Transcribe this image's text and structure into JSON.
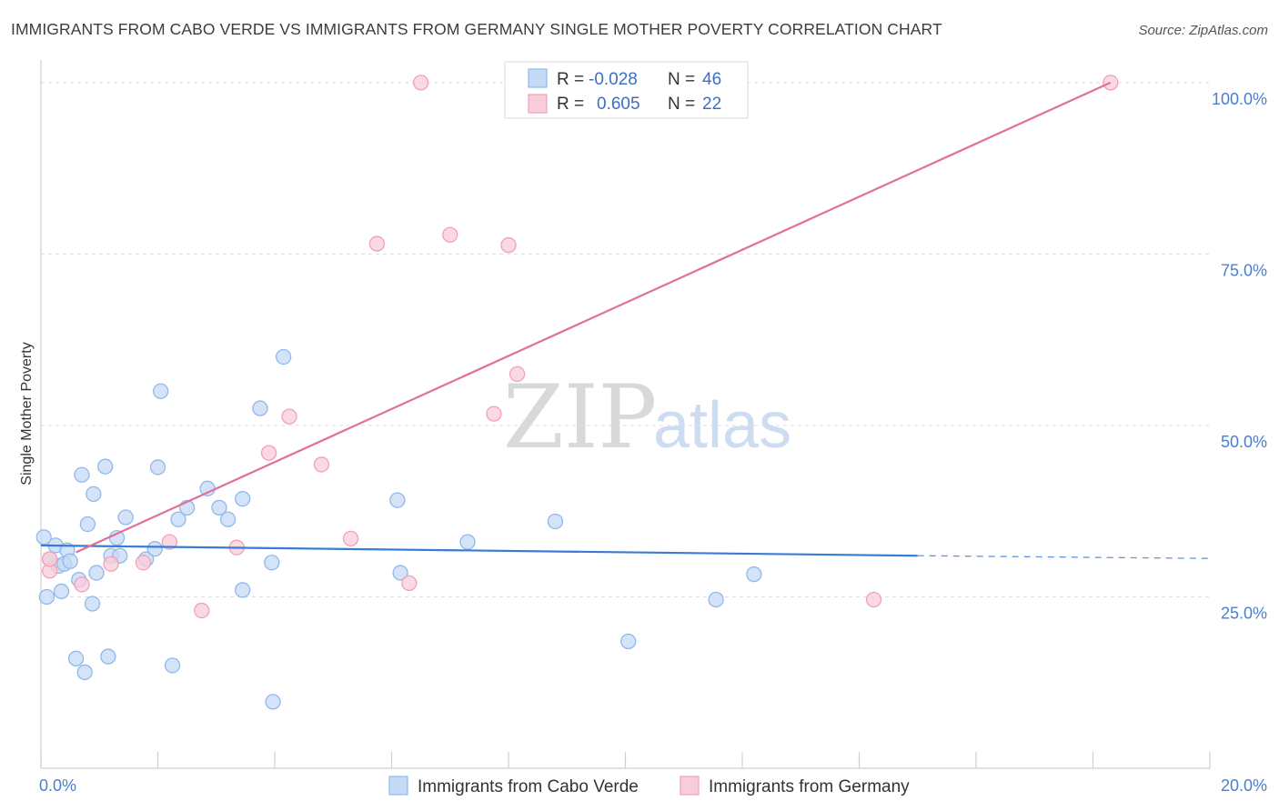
{
  "title": "IMMIGRANTS FROM CABO VERDE VS IMMIGRANTS FROM GERMANY SINGLE MOTHER POVERTY CORRELATION CHART",
  "source": "Source: ZipAtlas.com",
  "watermark": {
    "zip": "ZIP",
    "atlas": "atlas"
  },
  "legend": {
    "rows": [
      {
        "r_label": "R = ",
        "r_value": "-0.028",
        "n_label": "N = ",
        "n_value": "46",
        "color": "#8fb8ee",
        "fill": "#c5daf6"
      },
      {
        "r_label": "R = ",
        "r_value": "0.605",
        "n_label": "N = ",
        "n_value": "22",
        "color": "#f0a0b8",
        "fill": "#f9ccd9"
      }
    ]
  },
  "chart_data": {
    "type": "scatter",
    "title": "IMMIGRANTS FROM CABO VERDE VS IMMIGRANTS FROM GERMANY SINGLE MOTHER POVERTY CORRELATION CHART",
    "xlabel": "",
    "ylabel": "Single Mother Poverty",
    "xlim": [
      0,
      20
    ],
    "ylim": [
      0,
      102.5
    ],
    "x_ticks": [
      0,
      20
    ],
    "x_tick_labels": [
      "0.0%",
      "20.0%"
    ],
    "y_ticks": [
      25,
      50,
      75,
      100
    ],
    "y_tick_labels": [
      "25.0%",
      "50.0%",
      "75.0%",
      "100.0%"
    ],
    "grid": true,
    "legend_position": "top-center",
    "series": [
      {
        "name": "Immigrants from Cabo Verde",
        "color": "#3a7bd5",
        "marker_fill": "#c5daf6",
        "marker_stroke": "#8fb8ee",
        "points": [
          [
            0.05,
            33.7
          ],
          [
            0.1,
            25.0
          ],
          [
            0.15,
            30.5
          ],
          [
            0.25,
            32.5
          ],
          [
            0.3,
            29.5
          ],
          [
            0.35,
            25.8
          ],
          [
            0.4,
            29.8
          ],
          [
            0.45,
            31.8
          ],
          [
            0.5,
            30.2
          ],
          [
            0.6,
            16.0
          ],
          [
            0.65,
            27.5
          ],
          [
            0.7,
            42.8
          ],
          [
            0.75,
            14.0
          ],
          [
            0.8,
            35.6
          ],
          [
            0.88,
            24.0
          ],
          [
            0.9,
            40.0
          ],
          [
            0.95,
            28.5
          ],
          [
            1.1,
            44.0
          ],
          [
            1.15,
            16.3
          ],
          [
            1.2,
            31.0
          ],
          [
            1.3,
            33.6
          ],
          [
            1.35,
            31.0
          ],
          [
            1.45,
            36.6
          ],
          [
            1.8,
            30.5
          ],
          [
            1.95,
            32.0
          ],
          [
            2.0,
            43.9
          ],
          [
            2.05,
            55.0
          ],
          [
            2.25,
            15.0
          ],
          [
            2.35,
            36.3
          ],
          [
            2.5,
            38.0
          ],
          [
            2.85,
            40.8
          ],
          [
            3.05,
            38.0
          ],
          [
            3.2,
            36.3
          ],
          [
            3.45,
            26.0
          ],
          [
            3.45,
            39.3
          ],
          [
            3.75,
            52.5
          ],
          [
            3.95,
            30.0
          ],
          [
            3.97,
            9.7
          ],
          [
            4.15,
            60.0
          ],
          [
            6.1,
            39.1
          ],
          [
            6.15,
            28.5
          ],
          [
            7.3,
            33.0
          ],
          [
            8.8,
            36.0
          ],
          [
            10.05,
            18.5
          ],
          [
            11.55,
            24.6
          ],
          [
            12.2,
            28.3
          ]
        ],
        "trend": {
          "x_start": 0.0,
          "y_start": 32.5,
          "x_solid_end": 15.0,
          "y_solid_end": 31.0,
          "x_dash_end": 20.0,
          "y_dash_end": 30.6
        }
      },
      {
        "name": "Immigrants from Germany",
        "color": "#e07098",
        "marker_fill": "#f9ccd9",
        "marker_stroke": "#f0a0b8",
        "points": [
          [
            0.15,
            28.8
          ],
          [
            0.15,
            30.5
          ],
          [
            0.7,
            26.8
          ],
          [
            1.2,
            29.8
          ],
          [
            1.75,
            30.0
          ],
          [
            2.2,
            33.0
          ],
          [
            2.75,
            23.0
          ],
          [
            3.35,
            32.2
          ],
          [
            3.9,
            46.0
          ],
          [
            4.25,
            51.3
          ],
          [
            4.8,
            44.3
          ],
          [
            5.3,
            33.5
          ],
          [
            5.75,
            76.5
          ],
          [
            6.3,
            27.0
          ],
          [
            6.5,
            100.0
          ],
          [
            7.0,
            77.8
          ],
          [
            7.75,
            51.7
          ],
          [
            8.0,
            76.3
          ],
          [
            8.15,
            57.5
          ],
          [
            10.45,
            100.0
          ],
          [
            14.25,
            24.6
          ],
          [
            18.3,
            100.0
          ]
        ],
        "trend": {
          "x_start": 0.6,
          "y_start": 31.5,
          "x_end": 18.3,
          "y_end": 100.0
        }
      }
    ]
  },
  "bottom_legend": [
    {
      "label": "Immigrants from Cabo Verde",
      "fill": "#c5daf6",
      "stroke": "#8fb8ee"
    },
    {
      "label": "Immigrants from Germany",
      "fill": "#f9ccd9",
      "stroke": "#f0a0b8"
    }
  ]
}
